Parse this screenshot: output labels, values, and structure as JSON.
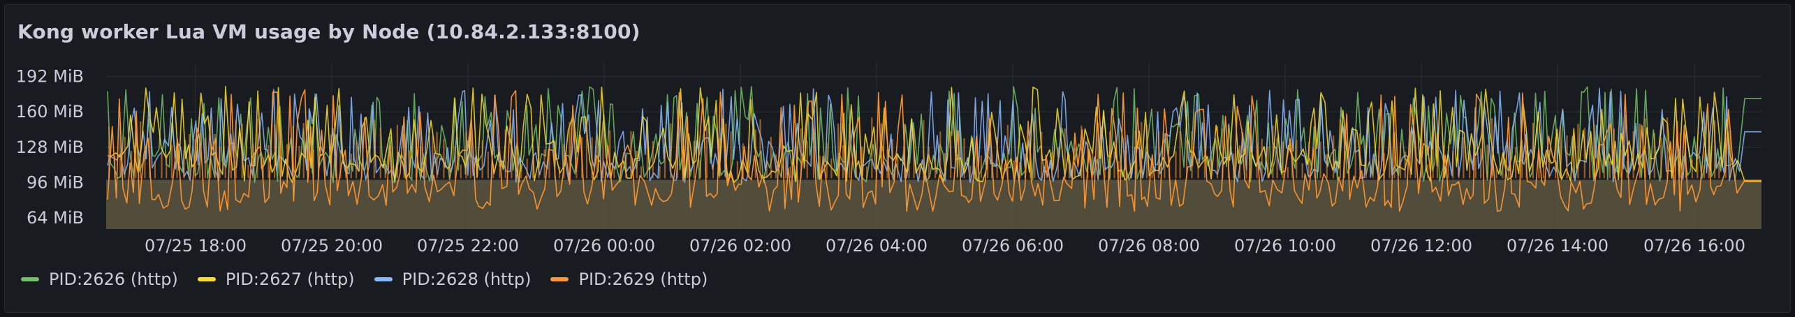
{
  "panel": {
    "title": "Kong worker Lua VM usage by Node (10.84.2.133:8100)"
  },
  "chart_data": {
    "type": "line",
    "title": "Kong worker Lua VM usage by Node (10.84.2.133:8100)",
    "xlabel": "",
    "ylabel": "",
    "y_unit": "MiB",
    "ylim": [
      54,
      198
    ],
    "y_ticks": [
      "64 MiB",
      "96 MiB",
      "128 MiB",
      "160 MiB",
      "192 MiB"
    ],
    "y_tick_values": [
      64,
      96,
      128,
      160,
      192
    ],
    "x_ticks": [
      "07/25 18:00",
      "07/25 20:00",
      "07/25 22:00",
      "07/26 00:00",
      "07/26 02:00",
      "07/26 04:00",
      "07/26 06:00",
      "07/26 08:00",
      "07/26 10:00",
      "07/26 12:00",
      "07/26 14:00",
      "07/26 16:00"
    ],
    "x_range": [
      "07/25 16:52",
      "07/26 16:40"
    ],
    "baseline_fill": {
      "value": 96,
      "color": "#5c5640"
    },
    "grid": true,
    "legend_position": "bottom-left",
    "series": [
      {
        "name": "PID:2626 (http)",
        "color": "#73bf69",
        "min": 96,
        "max": 183,
        "end_value": 172
      },
      {
        "name": "PID:2627 (http)",
        "color": "#fade2a",
        "min": 96,
        "max": 183,
        "end_value": 97
      },
      {
        "name": "PID:2628 (http)",
        "color": "#8ab8ff",
        "min": 96,
        "max": 182,
        "end_value": 142
      },
      {
        "name": "PID:2629 (http)",
        "color": "#ff9830",
        "min": 70,
        "max": 180,
        "end_value": 98
      }
    ]
  },
  "legend": {
    "items": [
      {
        "label": "PID:2626 (http)",
        "color": "#73bf69"
      },
      {
        "label": "PID:2627 (http)",
        "color": "#fade2a"
      },
      {
        "label": "PID:2628 (http)",
        "color": "#8ab8ff"
      },
      {
        "label": "PID:2629 (http)",
        "color": "#ff9830"
      }
    ]
  }
}
